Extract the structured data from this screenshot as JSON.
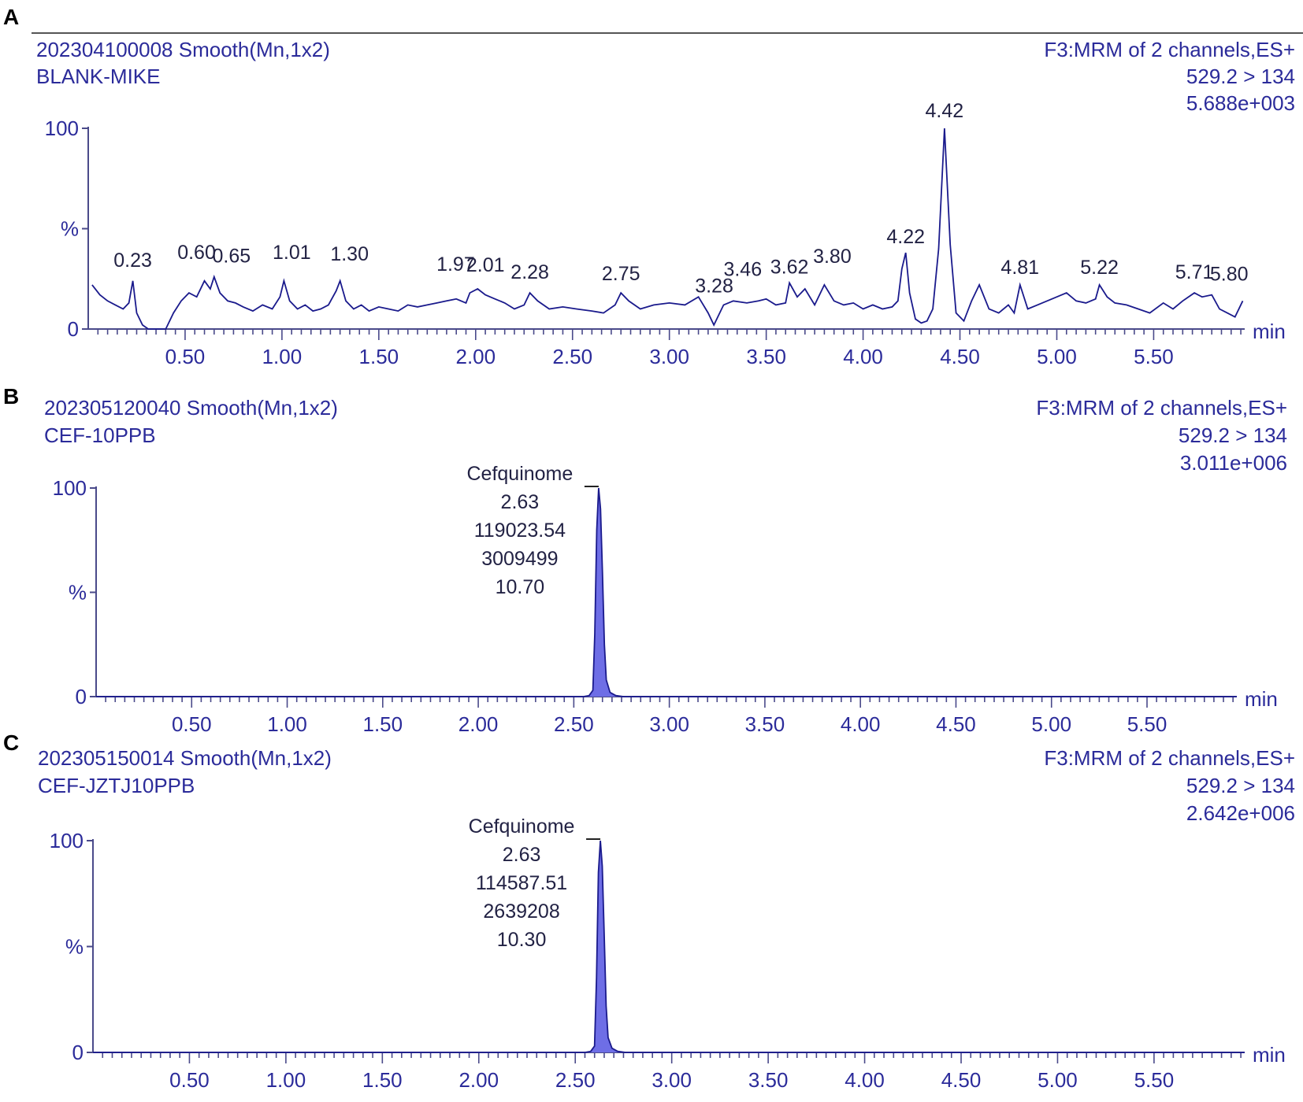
{
  "chart_data": [
    {
      "panel": "A",
      "type": "line",
      "header_left": [
        "202304100008 Smooth(Mn,1x2)",
        "BLANK-MIKE"
      ],
      "header_right": [
        "F3:MRM of 2 channels,ES+",
        "529.2 > 134",
        "5.688e+003"
      ],
      "xlabel": "min",
      "x_ticks": [
        "0.50",
        "1.00",
        "1.50",
        "2.00",
        "2.50",
        "3.00",
        "3.50",
        "4.00",
        "4.50",
        "5.00",
        "5.50"
      ],
      "xlim": [
        0.0,
        5.97
      ],
      "y_ticks": [
        "0",
        "%",
        "100"
      ],
      "ylim": [
        0,
        100
      ],
      "peak_labels": [
        "0.23",
        "0.60",
        "0.65",
        "1.01",
        "1.30",
        "1.97",
        "2.01",
        "2.28",
        "2.75",
        "3.28",
        "3.46",
        "3.62",
        "3.80",
        "4.22",
        "4.42",
        "4.81",
        "5.22",
        "5.71",
        "5.80"
      ],
      "series": [
        {
          "x": [
            0.02,
            0.06,
            0.1,
            0.14,
            0.18,
            0.21,
            0.23,
            0.25,
            0.28,
            0.31,
            0.35,
            0.4,
            0.44,
            0.48,
            0.52,
            0.56,
            0.6,
            0.63,
            0.65,
            0.68,
            0.72,
            0.76,
            0.8,
            0.85,
            0.9,
            0.95,
            0.99,
            1.01,
            1.04,
            1.08,
            1.12,
            1.16,
            1.2,
            1.24,
            1.28,
            1.3,
            1.33,
            1.37,
            1.41,
            1.45,
            1.5,
            1.55,
            1.6,
            1.65,
            1.7,
            1.75,
            1.8,
            1.85,
            1.9,
            1.95,
            1.97,
            2.01,
            2.05,
            2.1,
            2.15,
            2.2,
            2.25,
            2.28,
            2.32,
            2.38,
            2.45,
            2.52,
            2.6,
            2.66,
            2.72,
            2.75,
            2.79,
            2.85,
            2.92,
            3.0,
            3.08,
            3.15,
            3.2,
            3.23,
            3.28,
            3.33,
            3.4,
            3.46,
            3.5,
            3.55,
            3.6,
            3.62,
            3.66,
            3.7,
            3.75,
            3.8,
            3.85,
            3.9,
            3.95,
            4.0,
            4.05,
            4.1,
            4.15,
            4.18,
            4.2,
            4.22,
            4.24,
            4.27,
            4.3,
            4.33,
            4.36,
            4.39,
            4.42,
            4.45,
            4.48,
            4.52,
            4.56,
            4.6,
            4.65,
            4.7,
            4.75,
            4.78,
            4.81,
            4.85,
            4.9,
            4.95,
            5.0,
            5.05,
            5.1,
            5.15,
            5.2,
            5.22,
            5.26,
            5.3,
            5.36,
            5.42,
            5.48,
            5.55,
            5.6,
            5.65,
            5.71,
            5.75,
            5.8,
            5.84,
            5.88,
            5.92,
            5.96
          ],
          "values": [
            22,
            17,
            14,
            12,
            10,
            13,
            24,
            8,
            2,
            0,
            0,
            0,
            8,
            14,
            18,
            16,
            24,
            20,
            26,
            18,
            14,
            13,
            11,
            9,
            12,
            10,
            16,
            24,
            14,
            10,
            12,
            9,
            10,
            12,
            19,
            24,
            14,
            10,
            12,
            9,
            11,
            10,
            9,
            12,
            11,
            12,
            13,
            14,
            15,
            13,
            18,
            20,
            17,
            15,
            13,
            10,
            12,
            18,
            14,
            10,
            11,
            10,
            9,
            8,
            12,
            18,
            14,
            10,
            12,
            13,
            12,
            16,
            8,
            2,
            12,
            14,
            13,
            14,
            15,
            12,
            13,
            23,
            16,
            20,
            12,
            22,
            14,
            12,
            13,
            10,
            12,
            10,
            11,
            14,
            30,
            38,
            18,
            5,
            3,
            4,
            10,
            40,
            100,
            42,
            8,
            4,
            14,
            22,
            10,
            8,
            12,
            8,
            22,
            10,
            12,
            14,
            16,
            18,
            14,
            13,
            15,
            22,
            16,
            13,
            12,
            10,
            8,
            13,
            10,
            14,
            18,
            16,
            17,
            10,
            8,
            6,
            14
          ]
        }
      ]
    },
    {
      "panel": "B",
      "type": "area",
      "header_left": [
        "202305120040 Smooth(Mn,1x2)",
        "CEF-10PPB"
      ],
      "header_right": [
        "F3:MRM of 2 channels,ES+",
        "529.2 > 134",
        "3.011e+006"
      ],
      "xlabel": "min",
      "x_ticks": [
        "0.50",
        "1.00",
        "1.50",
        "2.00",
        "2.50",
        "3.00",
        "3.50",
        "4.00",
        "4.50",
        "5.00",
        "5.50"
      ],
      "xlim": [
        0.0,
        5.97
      ],
      "y_ticks": [
        "0",
        "%",
        "100"
      ],
      "ylim": [
        0,
        100
      ],
      "peak_annotation": [
        "Cefquinome",
        "2.63",
        "119023.54",
        "3009499",
        "10.70"
      ],
      "series": [
        {
          "x": [
            0.0,
            2.55,
            2.58,
            2.6,
            2.61,
            2.62,
            2.63,
            2.64,
            2.65,
            2.66,
            2.67,
            2.69,
            2.72,
            2.76,
            5.97
          ],
          "values": [
            0,
            0,
            0.5,
            3,
            30,
            80,
            100,
            90,
            60,
            25,
            8,
            2,
            0.5,
            0,
            0
          ]
        }
      ]
    },
    {
      "panel": "C",
      "type": "area",
      "header_left": [
        "202305150014 Smooth(Mn,1x2)",
        "CEF-JZTJ10PPB"
      ],
      "header_right": [
        "F3:MRM of 2 channels,ES+",
        "529.2 > 134",
        "2.642e+006"
      ],
      "xlabel": "min",
      "x_ticks": [
        "0.50",
        "1.00",
        "1.50",
        "2.00",
        "2.50",
        "3.00",
        "3.50",
        "4.00",
        "4.50",
        "5.00",
        "5.50"
      ],
      "xlim": [
        0.0,
        5.97
      ],
      "y_ticks": [
        "0",
        "%",
        "100"
      ],
      "ylim": [
        0,
        100
      ],
      "peak_annotation": [
        "Cefquinome",
        "2.63",
        "114587.51",
        "2639208",
        "10.30"
      ],
      "series": [
        {
          "x": [
            0.0,
            2.55,
            2.58,
            2.6,
            2.61,
            2.62,
            2.63,
            2.64,
            2.65,
            2.66,
            2.67,
            2.69,
            2.72,
            2.76,
            5.97
          ],
          "values": [
            0,
            0,
            0.5,
            3,
            35,
            85,
            100,
            88,
            55,
            22,
            7,
            2,
            0.5,
            0,
            0
          ]
        }
      ]
    }
  ],
  "panel_letters": [
    "A",
    "B",
    "C"
  ],
  "colors": {
    "trace": "#1a1a8c",
    "fill": "#6e6ee6",
    "axis": "#4a4a8a",
    "text": "#2b2b9a"
  }
}
